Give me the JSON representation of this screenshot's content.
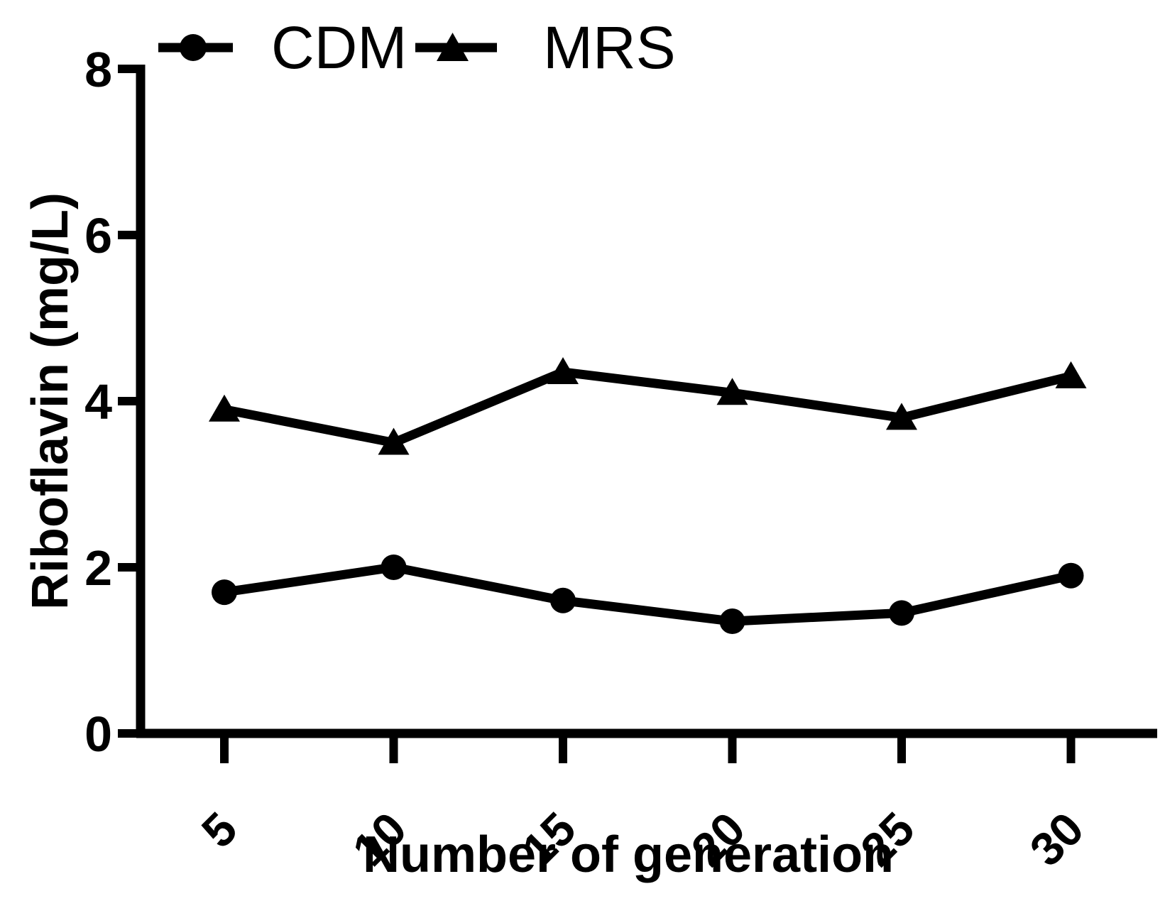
{
  "chart_data": {
    "type": "line",
    "title": "",
    "xlabel": "Number of generation",
    "ylabel": "Riboflavin (mg/L)",
    "x": [
      5,
      10,
      15,
      20,
      25,
      30
    ],
    "x_tick_labels": [
      "5",
      "10",
      "15",
      "20",
      "25",
      "30"
    ],
    "y_ticks": [
      0,
      2,
      4,
      6,
      8
    ],
    "y_tick_labels": [
      "0",
      "2",
      "4",
      "6",
      "8"
    ],
    "ylim": [
      0,
      8
    ],
    "grid": false,
    "legend_position": "top-left",
    "background_color": "#ffffff",
    "axis_color": "#000000",
    "series": [
      {
        "name": "CDM",
        "marker": "circle",
        "color": "#000000",
        "values": [
          1.7,
          2.0,
          1.6,
          1.35,
          1.45,
          1.9
        ]
      },
      {
        "name": "MRS",
        "marker": "triangle",
        "color": "#000000",
        "values": [
          3.9,
          3.5,
          4.35,
          4.1,
          3.8,
          4.3
        ]
      }
    ]
  }
}
